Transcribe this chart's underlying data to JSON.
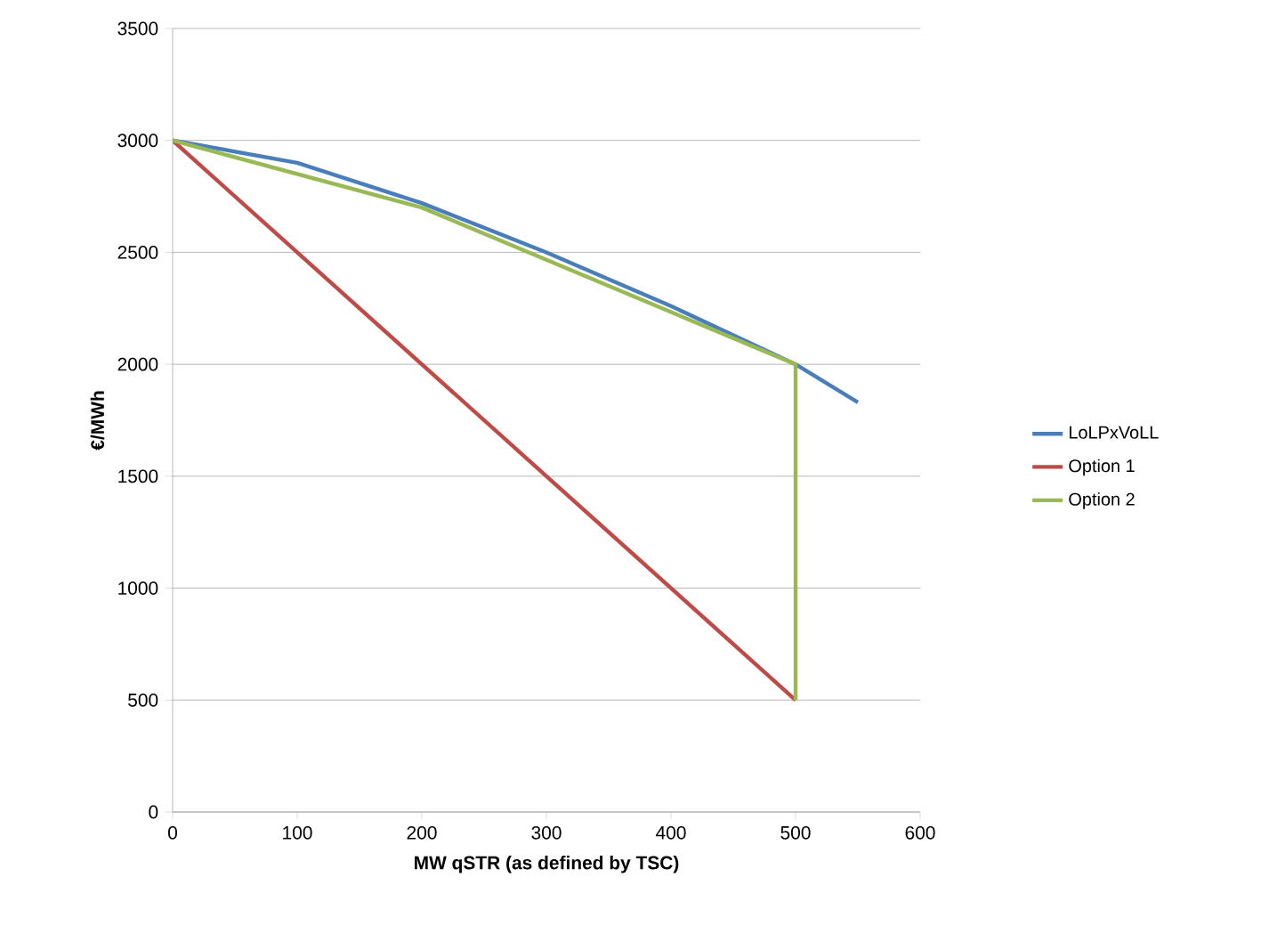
{
  "chart_data": {
    "type": "line",
    "xlabel": "MW qSTR (as defined by TSC)",
    "ylabel": "€/MWh",
    "xlim": [
      0,
      600
    ],
    "ylim": [
      0,
      3500
    ],
    "xticks": [
      0,
      100,
      200,
      300,
      400,
      500,
      600
    ],
    "yticks": [
      0,
      500,
      1000,
      1500,
      2000,
      2500,
      3000,
      3500
    ],
    "grid": "y",
    "legend": "right",
    "marker": "none",
    "line_style": "solid",
    "series": [
      {
        "name": "LoLPxVoLL",
        "color": "#4a7ebb",
        "x": [
          0,
          100,
          200,
          300,
          400,
          500,
          550
        ],
        "values": [
          3000,
          2900,
          2720,
          2500,
          2260,
          2000,
          1830
        ]
      },
      {
        "name": "Option 1",
        "color": "#be4b48",
        "x": [
          0,
          500
        ],
        "values": [
          3000,
          500
        ]
      },
      {
        "name": "Option 2",
        "color": "#98b954",
        "x": [
          0,
          200,
          500,
          500
        ],
        "values": [
          3000,
          2700,
          2000,
          500
        ]
      }
    ]
  }
}
